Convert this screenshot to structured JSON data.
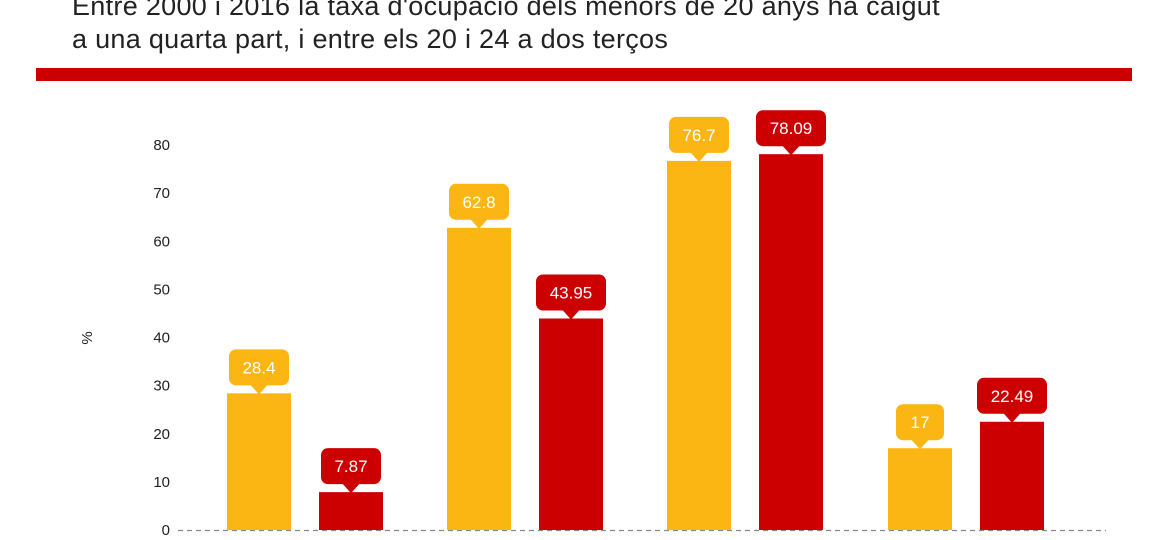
{
  "header": {
    "title_lines": [
      "Entre 2000 i 2016 la taxa d'ocupació dels menors de 20 anys ha caigut",
      "a una quarta part, i entre els 20 i 24 a dos terços"
    ],
    "rule_color": "#cc0000"
  },
  "chart_data": {
    "type": "bar",
    "title": "Entre 2000 i 2016 la taxa d'ocupació dels menors de 20 anys ha caigut a una quarta part, i entre els 20 i 24 a dos terços",
    "xlabel": "",
    "ylabel": "%",
    "ylim": [
      0,
      80
    ],
    "yticks": [
      0,
      10,
      20,
      30,
      40,
      50,
      60,
      70,
      80
    ],
    "grid": false,
    "categories": [
      "",
      "",
      "",
      ""
    ],
    "series": [
      {
        "color": "#fbb614",
        "values": [
          28.4,
          62.8,
          76.7,
          17
        ]
      },
      {
        "color": "#cc0000",
        "values": [
          7.87,
          43.95,
          78.09,
          22.49
        ]
      }
    ],
    "data_labels": [
      [
        "28.4",
        "62.8",
        "76.7",
        "17"
      ],
      [
        "7.87",
        "43.95",
        "78.09",
        "22.49"
      ]
    ],
    "baseline_style": "dashed"
  }
}
